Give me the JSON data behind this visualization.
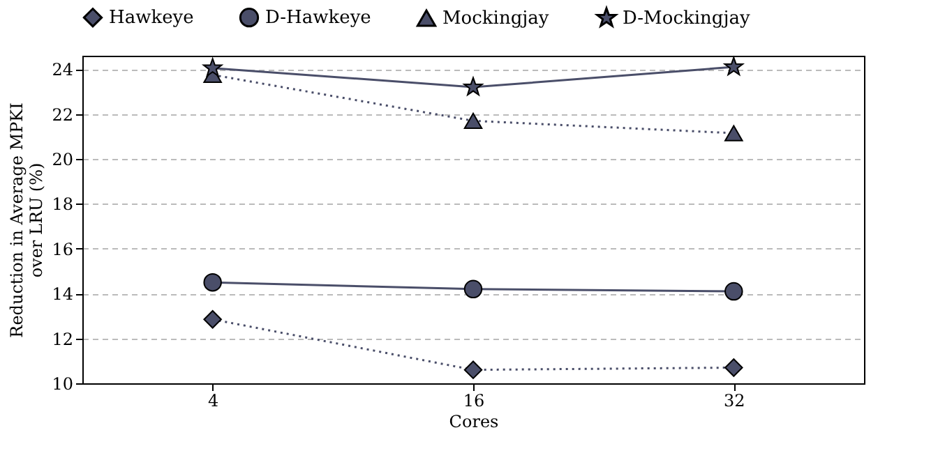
{
  "chart_data": {
    "type": "line",
    "xlabel": "Cores",
    "ylabel": "Reduction in Average MPKI over LRU (%)",
    "categories": [
      "4",
      "16",
      "32"
    ],
    "series": [
      {
        "name": "Hawkeye",
        "color": "#4a4e69",
        "marker": "diamond",
        "line_style": "dotted",
        "values": [
          12.85,
          10.6,
          10.7
        ]
      },
      {
        "name": "D-Hawkeye",
        "color": "#4a4e69",
        "marker": "circle",
        "line_style": "solid",
        "values": [
          14.5,
          14.2,
          14.1
        ]
      },
      {
        "name": "Mockingjay",
        "color": "#4a4e69",
        "marker": "triangle",
        "line_style": "dotted",
        "values": [
          23.75,
          21.7,
          21.15
        ]
      },
      {
        "name": "D-Mockingjay",
        "color": "#4a4e69",
        "marker": "star",
        "line_style": "solid",
        "values": [
          24.05,
          23.2,
          24.1
        ]
      }
    ],
    "ylim": [
      10,
      24.6
    ],
    "yticks": [
      10,
      12,
      14,
      16,
      18,
      20,
      22,
      24
    ],
    "grid": "y",
    "legend": "top"
  }
}
